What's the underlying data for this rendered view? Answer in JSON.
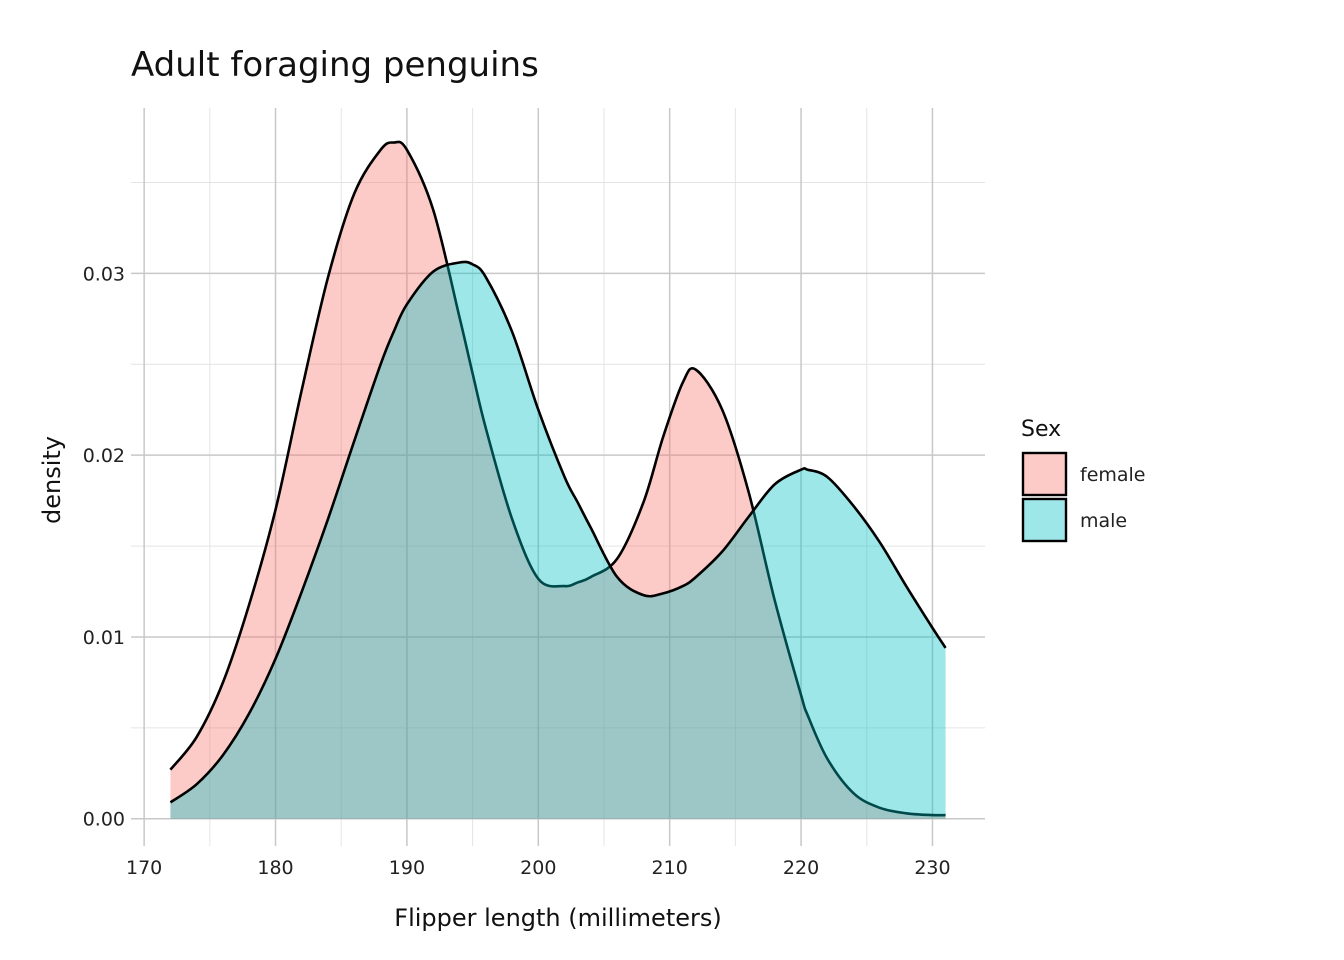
{
  "chart_data": {
    "type": "area",
    "title": "Adult foraging penguins",
    "xlabel": "Flipper length (millimeters)",
    "ylabel": "density",
    "xlim": [
      169,
      234
    ],
    "ylim": [
      -0.0015,
      0.0391
    ],
    "x_ticks": [
      170,
      180,
      190,
      200,
      210,
      220,
      230
    ],
    "y_ticks": [
      0.0,
      0.01,
      0.02,
      0.03
    ],
    "y_tick_labels": [
      "0.00",
      "0.01",
      "0.02",
      "0.03"
    ],
    "grid": true,
    "legend": {
      "title": "Sex",
      "position": "right"
    },
    "x": [
      172,
      174,
      176,
      178,
      180,
      182,
      184,
      186,
      188,
      189,
      190,
      192,
      194,
      195,
      196,
      198,
      200,
      202,
      203,
      204,
      206,
      208,
      209.5,
      211,
      212,
      214,
      216,
      218,
      220,
      220.5,
      222,
      224,
      226,
      228,
      230,
      231
    ],
    "series": [
      {
        "name": "female",
        "color": "#F8766D",
        "values": [
          0.0027,
          0.0045,
          0.0075,
          0.0118,
          0.017,
          0.0236,
          0.0298,
          0.0344,
          0.0368,
          0.0372,
          0.0368,
          0.0335,
          0.0276,
          0.0245,
          0.0215,
          0.0165,
          0.0132,
          0.0128,
          0.013,
          0.0133,
          0.0143,
          0.0174,
          0.021,
          0.024,
          0.0247,
          0.0225,
          0.018,
          0.012,
          0.0068,
          0.0057,
          0.0033,
          0.0014,
          0.0006,
          0.0003,
          0.0002,
          0.0002
        ]
      },
      {
        "name": "male",
        "color": "#00BFC4",
        "values": [
          0.0009,
          0.0019,
          0.0035,
          0.0058,
          0.0088,
          0.0125,
          0.0165,
          0.0208,
          0.025,
          0.0268,
          0.0283,
          0.0301,
          0.0306,
          0.0305,
          0.0298,
          0.0268,
          0.0225,
          0.0188,
          0.0174,
          0.016,
          0.0133,
          0.0123,
          0.0124,
          0.0128,
          0.0133,
          0.0147,
          0.0166,
          0.0184,
          0.0192,
          0.0192,
          0.0188,
          0.0172,
          0.0152,
          0.0128,
          0.0105,
          0.0094
        ]
      }
    ]
  }
}
